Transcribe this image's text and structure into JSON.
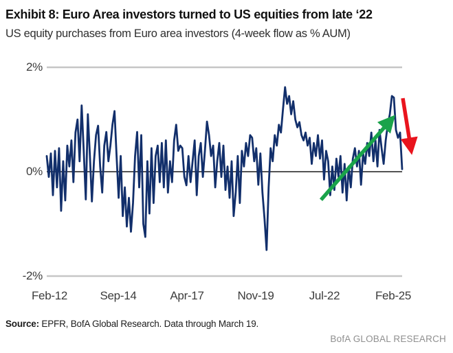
{
  "header": {
    "title": "Exhibit 8: Euro Area investors turned to US equities from late ‘22",
    "subtitle": "US equity purchases from Euro area investors (4-week flow as % AUM)"
  },
  "chart_data": {
    "type": "line",
    "title": "US equity purchases from Euro area investors (4-week flow as % AUM)",
    "xlabel": "",
    "ylabel": "4-week flow as % AUM",
    "ylim": [
      -2,
      2
    ],
    "grid": "horizontal-edges-only",
    "x_tick_labels": [
      "Feb-12",
      "Sep-14",
      "Apr-17",
      "Nov-19",
      "Jul-22",
      "Feb-25"
    ],
    "y_ticks": [
      {
        "label": "2%",
        "value": 2
      },
      {
        "label": "0%",
        "value": 0
      },
      {
        "label": "-2%",
        "value": -2
      }
    ],
    "series": [
      {
        "name": "US equity purchases from Euro area investors (4-week flow as % AUM)",
        "values": [
          0.3,
          -0.1,
          0.35,
          -0.45,
          0.4,
          -0.3,
          0.45,
          -0.75,
          0.2,
          -0.55,
          0.5,
          0.1,
          0.6,
          -0.2,
          0.75,
          1.0,
          0.2,
          1.27,
          0.4,
          -0.53,
          1.1,
          0.3,
          -0.57,
          0.2,
          0.7,
          0.88,
          0.1,
          -0.4,
          0.5,
          0.76,
          0.2,
          0.5,
          0.9,
          1.16,
          0.3,
          -0.5,
          0.3,
          -0.85,
          -0.3,
          -1.05,
          -0.5,
          -1.15,
          -0.6,
          0.3,
          0.76,
          -0.3,
          0.7,
          -1.0,
          -1.25,
          0.2,
          -0.8,
          0.45,
          -0.6,
          0.3,
          0.5,
          -0.2,
          0.55,
          -0.3,
          0.6,
          -0.4,
          0.2,
          -0.2,
          0.6,
          0.9,
          0.4,
          0.5,
          0.45,
          -0.1,
          -0.26,
          0.3,
          -0.2,
          0.2,
          0.6,
          -0.45,
          0.3,
          0.55,
          -0.1,
          0.4,
          0.96,
          0.7,
          0.3,
          0.5,
          -0.3,
          0.2,
          0.55,
          -0.1,
          0.5,
          -0.35,
          0.1,
          -0.5,
          0.2,
          -0.85,
          -0.4,
          0.3,
          -0.6,
          0.4,
          0.1,
          0.55,
          0.3,
          0.7,
          0.65,
          0.2,
          0.45,
          -0.25,
          0.35,
          -0.4,
          -0.9,
          -1.5,
          -0.3,
          0.45,
          0.2,
          0.7,
          0.5,
          0.9,
          0.75,
          1.2,
          1.62,
          1.3,
          1.45,
          1.1,
          1.35,
          1.0,
          0.85,
          0.95,
          0.7,
          0.6,
          0.75,
          0.5,
          0.65,
          0.15,
          0.55,
          0.3,
          0.7,
          0.25,
          0.6,
          -0.15,
          0.4,
          0.2,
          -0.45,
          0.1,
          -0.35,
          0.25,
          -0.1,
          0.3,
          -0.4,
          0.15,
          -0.55,
          0.1,
          -0.3,
          0.25,
          0.45,
          0.1,
          0.4,
          -0.25,
          0.35,
          0.15,
          0.55,
          0.3,
          0.75,
          0.2,
          0.6,
          0.1,
          0.8,
          0.45,
          0.15,
          0.6,
          0.9,
          1.1,
          1.45,
          1.42,
          0.8,
          0.65,
          0.75,
          0.05
        ]
      }
    ],
    "colors": {
      "series_line": "#122f6b",
      "zero_line": "#1a1a1a",
      "grid_line": "#c6c6c6",
      "uptrend_arrow": "#1aa34a",
      "downtrend_arrow": "#e9141d"
    },
    "annotations": [
      {
        "type": "arrow",
        "direction": "up",
        "meaning": "rising US equity purchases from late 2022"
      },
      {
        "type": "arrow",
        "direction": "down",
        "meaning": "sharp reversal at the end of the series"
      }
    ],
    "legend": "none"
  },
  "footer": {
    "source_label": "Source:",
    "source_text": " EPFR, BofA Global Research. Data through March 19.",
    "brand": "BofA GLOBAL RESEARCH"
  }
}
